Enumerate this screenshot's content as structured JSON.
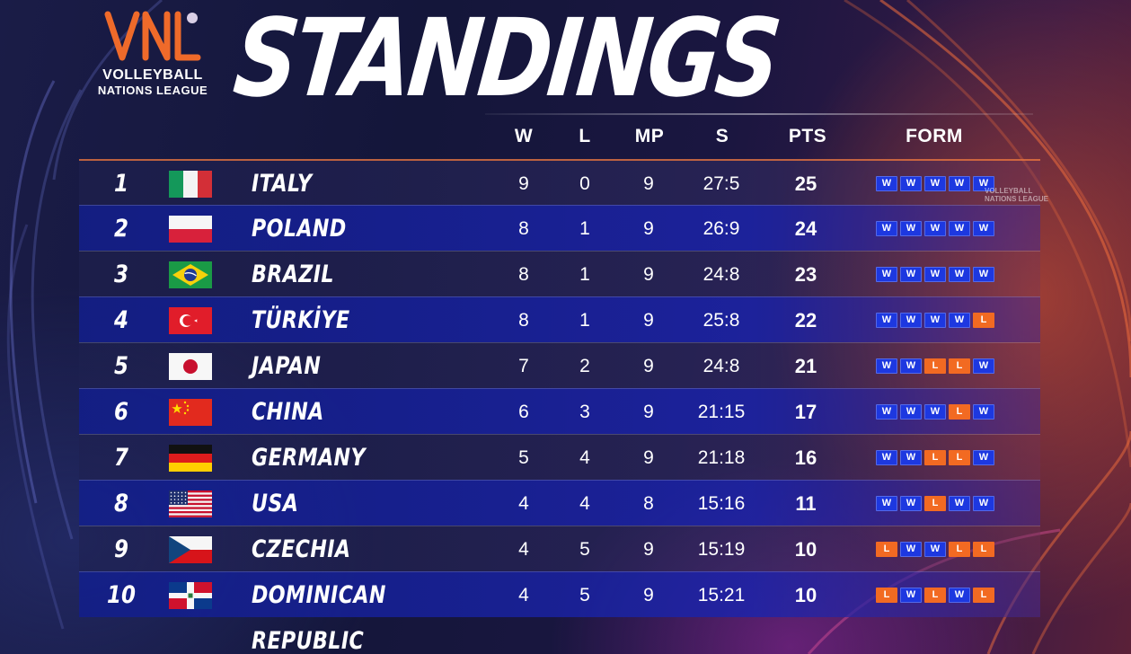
{
  "logo": {
    "mark": "VNL",
    "line1": "VOLLEYBALL",
    "line2": "NATIONS LEAGUE"
  },
  "title": "STANDINGS",
  "columns": {
    "w": "W",
    "l": "L",
    "mp": "MP",
    "s": "S",
    "pts": "PTS",
    "form": "FORM"
  },
  "colors": {
    "win": "#1d38e0",
    "loss": "#f26a22",
    "accent": "#f07840"
  },
  "watermark": {
    "line1": "VOLLEYBALL",
    "line2": "NATIONS LEAGUE"
  },
  "rows": [
    {
      "rank": "1",
      "flag": "italy-flag-icon",
      "team": "ITALY",
      "w": "9",
      "l": "0",
      "mp": "9",
      "s": "27:5",
      "pts": "25",
      "form": [
        "W",
        "W",
        "W",
        "W",
        "W"
      ]
    },
    {
      "rank": "2",
      "flag": "poland-flag-icon",
      "team": "POLAND",
      "w": "8",
      "l": "1",
      "mp": "9",
      "s": "26:9",
      "pts": "24",
      "form": [
        "W",
        "W",
        "W",
        "W",
        "W"
      ]
    },
    {
      "rank": "3",
      "flag": "brazil-flag-icon",
      "team": "BRAZIL",
      "w": "8",
      "l": "1",
      "mp": "9",
      "s": "24:8",
      "pts": "23",
      "form": [
        "W",
        "W",
        "W",
        "W",
        "W"
      ]
    },
    {
      "rank": "4",
      "flag": "turkiye-flag-icon",
      "team": "TÜRKİYE",
      "w": "8",
      "l": "1",
      "mp": "9",
      "s": "25:8",
      "pts": "22",
      "form": [
        "W",
        "W",
        "W",
        "W",
        "L"
      ]
    },
    {
      "rank": "5",
      "flag": "japan-flag-icon",
      "team": "JAPAN",
      "w": "7",
      "l": "2",
      "mp": "9",
      "s": "24:8",
      "pts": "21",
      "form": [
        "W",
        "W",
        "L",
        "L",
        "W"
      ]
    },
    {
      "rank": "6",
      "flag": "china-flag-icon",
      "team": "CHINA",
      "w": "6",
      "l": "3",
      "mp": "9",
      "s": "21:15",
      "pts": "17",
      "form": [
        "W",
        "W",
        "W",
        "L",
        "W"
      ]
    },
    {
      "rank": "7",
      "flag": "germany-flag-icon",
      "team": "GERMANY",
      "w": "5",
      "l": "4",
      "mp": "9",
      "s": "21:18",
      "pts": "16",
      "form": [
        "W",
        "W",
        "L",
        "L",
        "W"
      ]
    },
    {
      "rank": "8",
      "flag": "usa-flag-icon",
      "team": "USA",
      "w": "4",
      "l": "4",
      "mp": "8",
      "s": "15:16",
      "pts": "11",
      "form": [
        "W",
        "W",
        "L",
        "W",
        "W"
      ]
    },
    {
      "rank": "9",
      "flag": "czechia-flag-icon",
      "team": "CZECHIA",
      "w": "4",
      "l": "5",
      "mp": "9",
      "s": "15:19",
      "pts": "10",
      "form": [
        "L",
        "W",
        "W",
        "L",
        "L"
      ]
    },
    {
      "rank": "10",
      "flag": "dominican-republic-flag-icon",
      "team": "DOMINICAN REPUBLIC",
      "w": "4",
      "l": "5",
      "mp": "9",
      "s": "15:21",
      "pts": "10",
      "form": [
        "L",
        "W",
        "L",
        "W",
        "L"
      ]
    }
  ]
}
